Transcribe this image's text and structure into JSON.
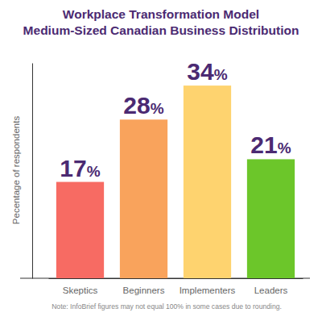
{
  "chart_data": {
    "type": "bar",
    "title": "Workplace Transformation Model",
    "subtitle": "Medium-Sized Canadian Business Distribution",
    "y_label": "Pecentage of respondents",
    "categories": [
      "Skeptics",
      "Beginners",
      "Implementers",
      "Leaders"
    ],
    "values": [
      17,
      28,
      34,
      21
    ],
    "value_labels": [
      "17%",
      "28%",
      "34%",
      "21%"
    ],
    "colors": [
      "#f76b63",
      "#f9a35c",
      "#fed36f",
      "#6cc62a"
    ],
    "ylim": [
      0,
      38
    ],
    "tick_labels": "x",
    "data_labels": true,
    "annotations": [
      "Note: InfoBrief figures may not equal 100% in some cases due to rounding."
    ]
  }
}
